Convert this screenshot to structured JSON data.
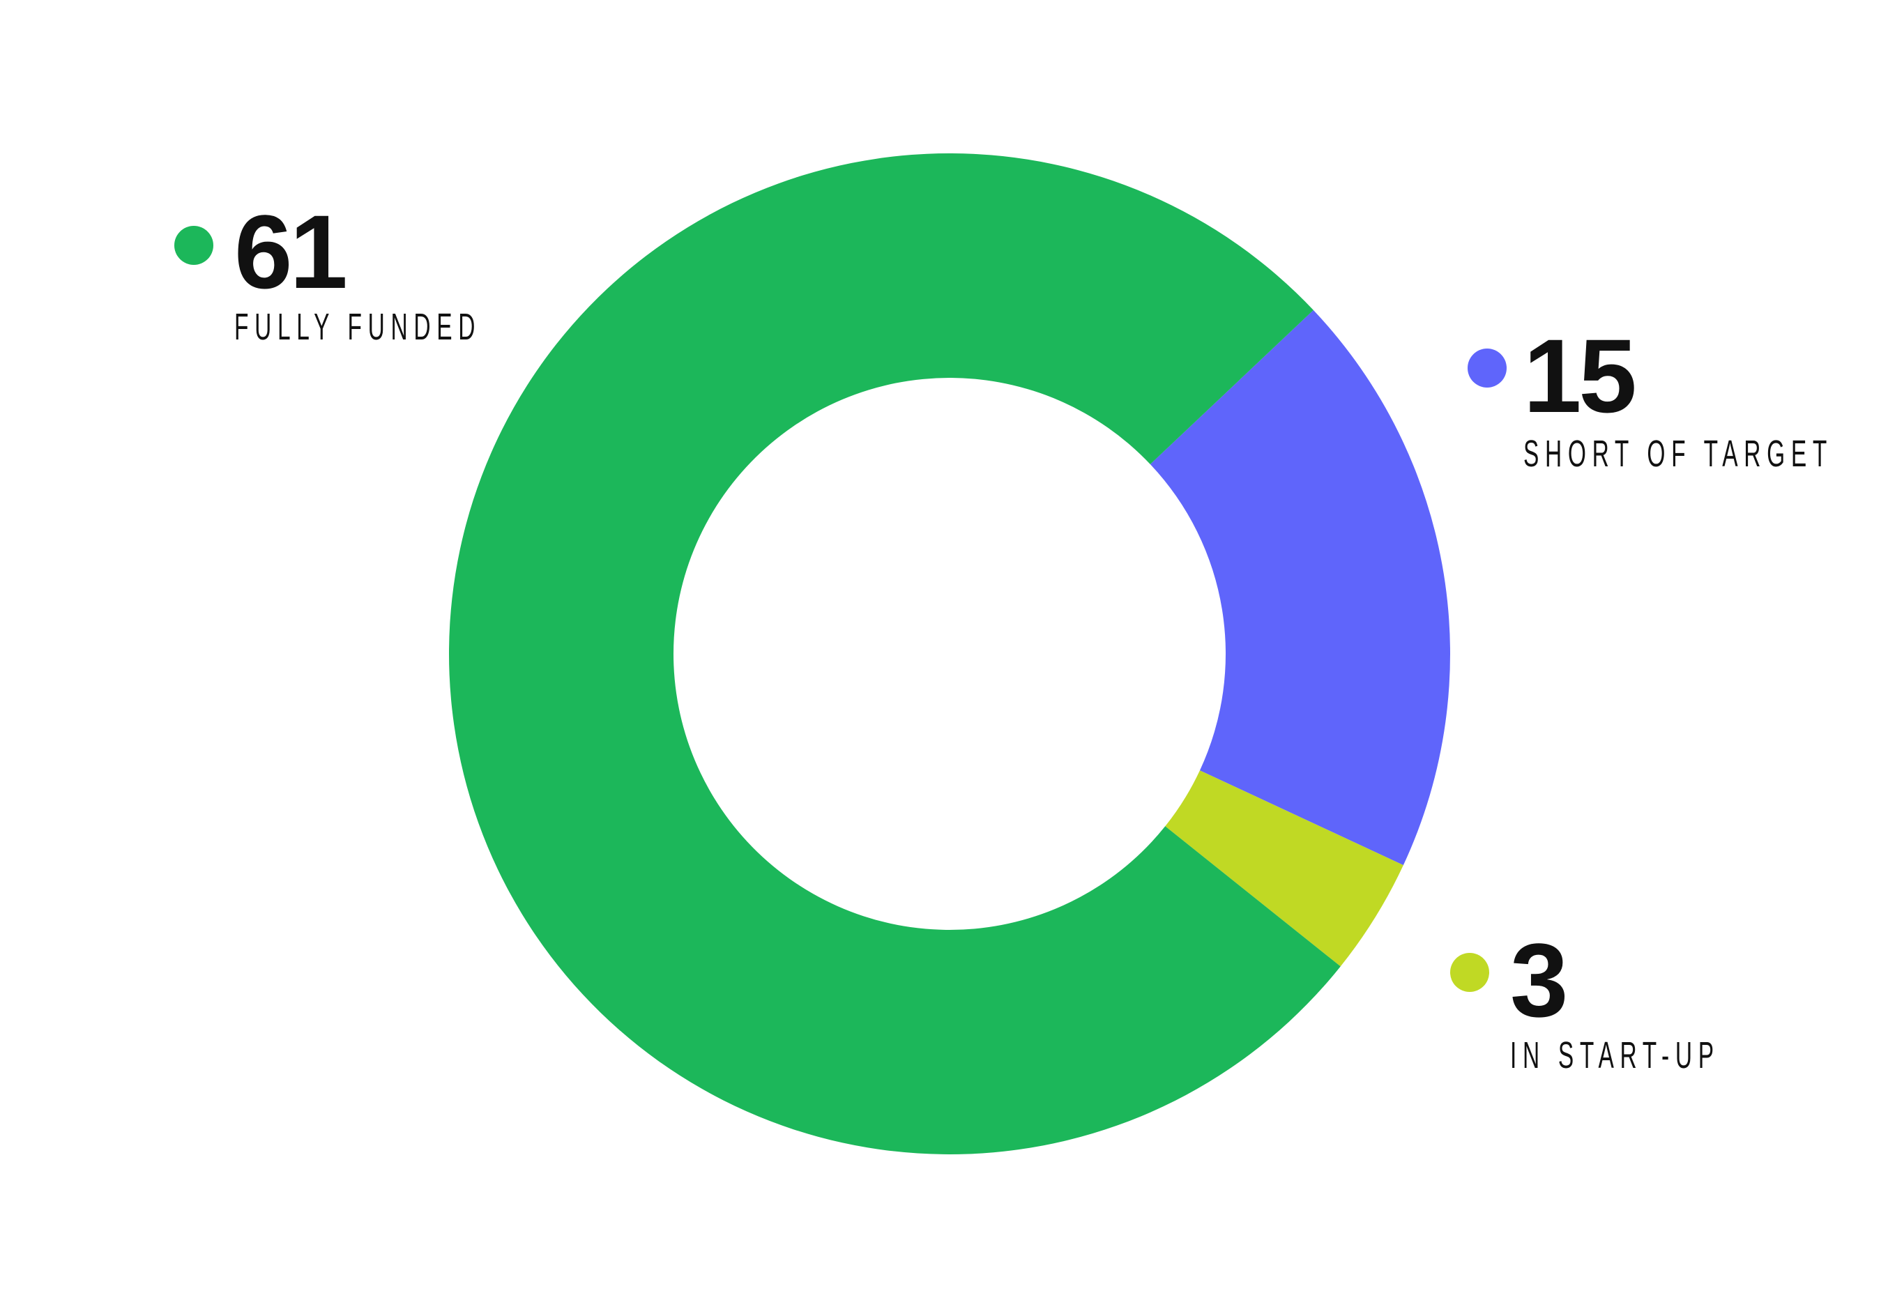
{
  "chart_data": {
    "type": "pie",
    "donut": true,
    "title": "",
    "series": [
      {
        "values": [
          61,
          15,
          3
        ],
        "colors": [
          "#1cb75a",
          "#5f65fb",
          "#c0d924"
        ]
      }
    ],
    "categories": [
      "FULLY FUNDED",
      "SHORT OF TARGET",
      "IN START-UP"
    ],
    "legend": {
      "placement": "around",
      "items": [
        {
          "value": "61",
          "label": "FULLY FUNDED",
          "color": "#1cb75a"
        },
        {
          "value": "15",
          "label": "SHORT OF TARGET",
          "color": "#5f65fb"
        },
        {
          "value": "3",
          "label": "IN START-UP",
          "color": "#c0d924"
        }
      ]
    }
  }
}
